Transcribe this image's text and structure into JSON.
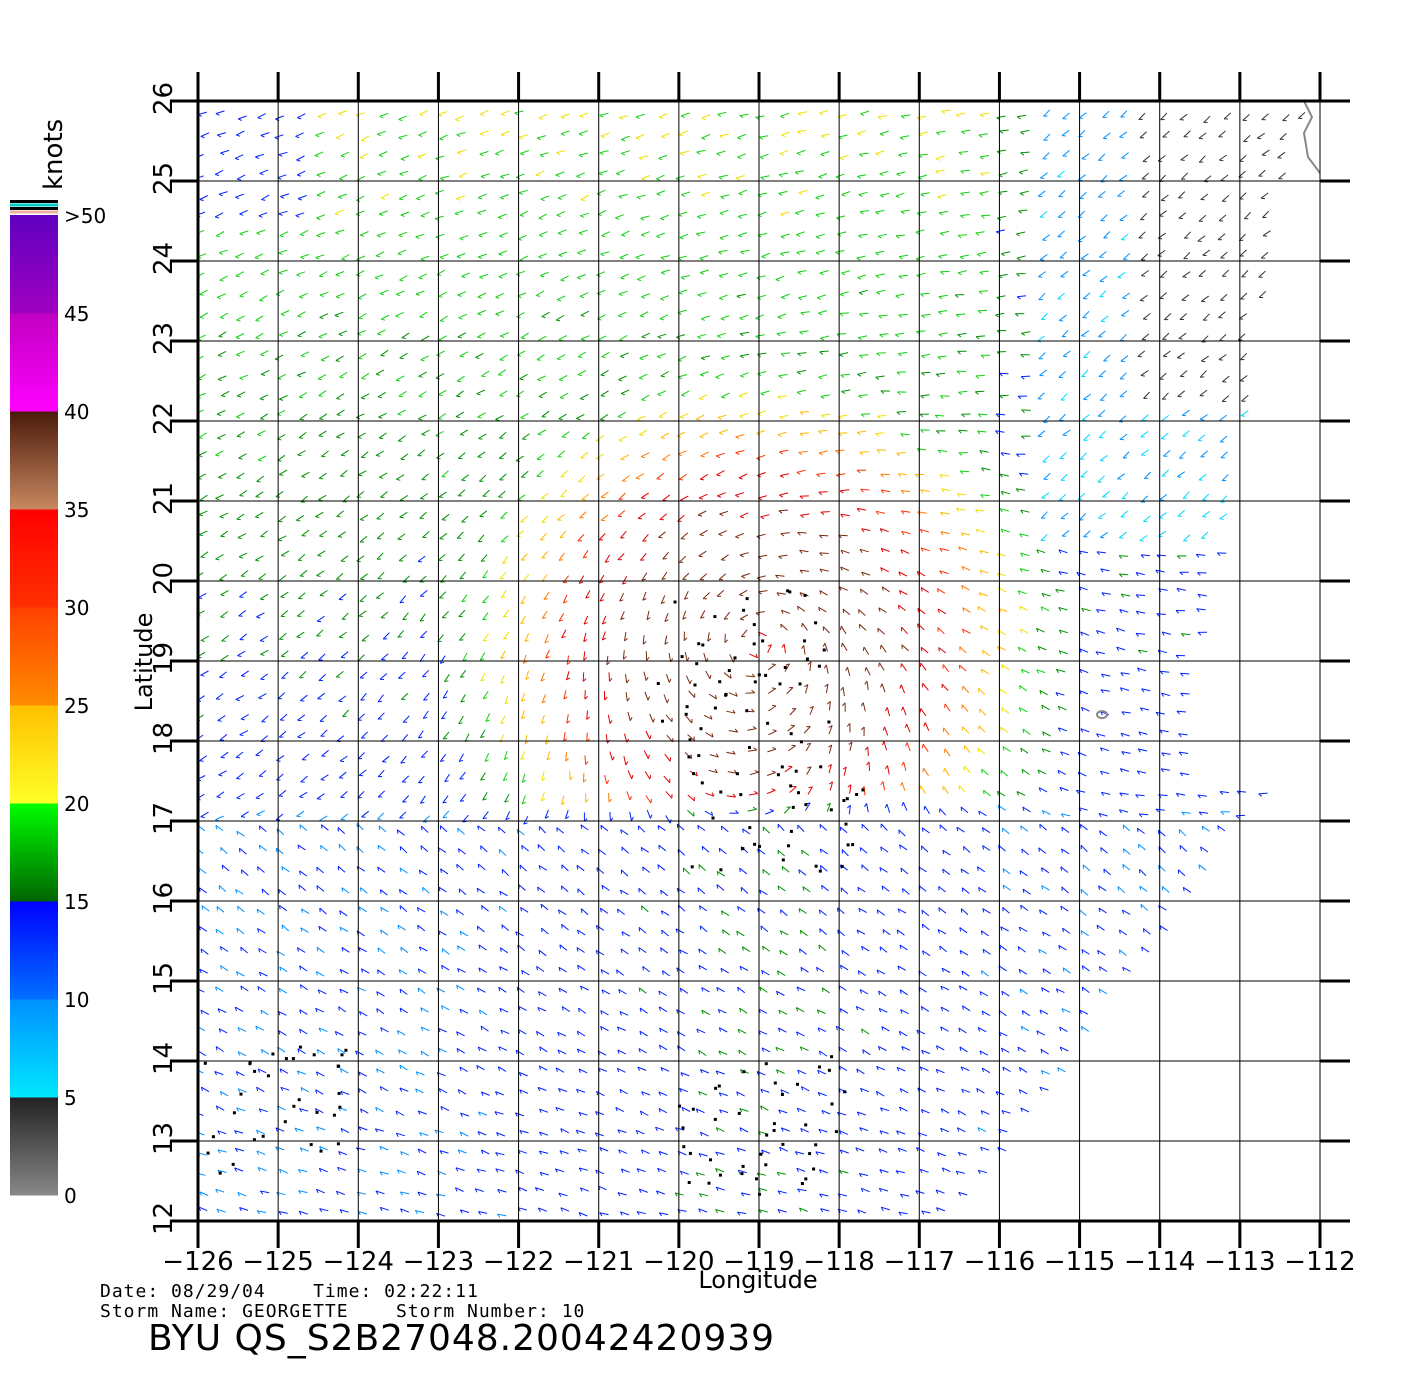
{
  "chart_data": {
    "type": "wind_vector_map",
    "xlabel": "Longitude",
    "ylabel": "Latitude",
    "xlim": [
      -126,
      -112
    ],
    "ylim": [
      12,
      26
    ],
    "x_ticks": [
      "-126",
      "-125",
      "-124",
      "-123",
      "-122",
      "-121",
      "-120",
      "-119",
      "-118",
      "-117",
      "-116",
      "-115",
      "-114",
      "-113",
      "-112"
    ],
    "y_ticks": [
      "12",
      "13",
      "14",
      "15",
      "16",
      "17",
      "18",
      "19",
      "20",
      "21",
      "22",
      "23",
      "24",
      "25",
      "26"
    ],
    "grid": true,
    "storm_center": {
      "lon": -119.0,
      "lat": 19.2
    },
    "rain_flagged_regions": [
      {
        "lon": -119.2,
        "lat": 19.0
      },
      {
        "lon": -118.8,
        "lat": 17.2
      },
      {
        "lon": -119.0,
        "lat": 13.2
      },
      {
        "lon": -125.2,
        "lat": 13.4
      }
    ],
    "colorbar": {
      "title": "knots",
      "labels": [
        "0",
        "5",
        "10",
        "15",
        "20",
        "25",
        "30",
        "35",
        "40",
        "45",
        ">50"
      ],
      "bins": [
        {
          "range": [
            0,
            5
          ],
          "colors": [
            "#888888",
            "#222222"
          ]
        },
        {
          "range": [
            5,
            10
          ],
          "colors": [
            "#00e8ff",
            "#0090ff"
          ]
        },
        {
          "range": [
            10,
            15
          ],
          "colors": [
            "#0070ff",
            "#0000ff"
          ]
        },
        {
          "range": [
            15,
            20
          ],
          "colors": [
            "#006400",
            "#00ff00"
          ]
        },
        {
          "range": [
            20,
            25
          ],
          "colors": [
            "#ffff28",
            "#ffc000"
          ]
        },
        {
          "range": [
            25,
            30
          ],
          "colors": [
            "#ff8c00",
            "#ff4000"
          ]
        },
        {
          "range": [
            30,
            35
          ],
          "colors": [
            "#ff3000",
            "#ff0000"
          ]
        },
        {
          "range": [
            35,
            40
          ],
          "colors": [
            "#c88860",
            "#4a1a0a"
          ]
        },
        {
          "range": [
            40,
            45
          ],
          "colors": [
            "#ff00ff",
            "#c000c0"
          ]
        },
        {
          "range": [
            45,
            50
          ],
          "colors": [
            "#a000c0",
            "#6000c0"
          ]
        }
      ],
      "cap_colors": [
        "#000000",
        "#00c8c8",
        "#000000",
        "#f0b0a0"
      ]
    }
  },
  "footer": {
    "date_label": "Date:",
    "date": "08/29/04",
    "time_label": "Time:",
    "time": "02:22:11",
    "storm_name_label": "Storm Name:",
    "storm_name": "GEORGETTE",
    "storm_number_label": "Storm Number:",
    "storm_number": "10",
    "file_id": "BYU QS_S2B27048.20042420939"
  },
  "colors": {
    "grid": "#000000",
    "coastline": "#888888",
    "background": "#ffffff"
  }
}
